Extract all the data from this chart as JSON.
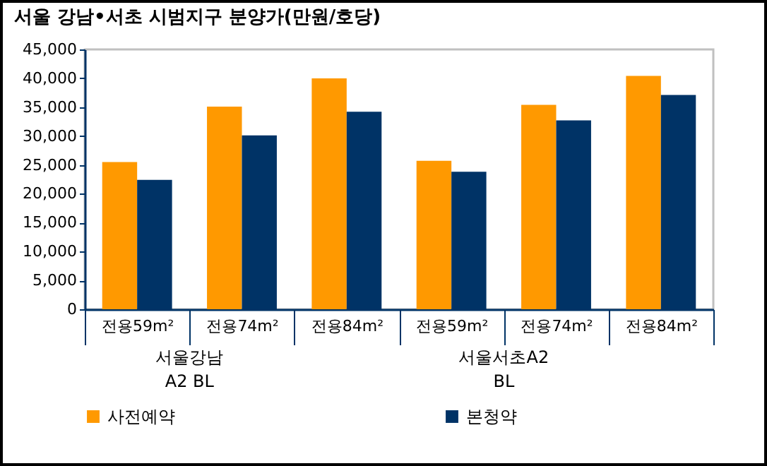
{
  "chart_data": {
    "type": "bar",
    "title": "서울 강남•서초 시범지구 분양가(만원/호당)",
    "categories": [
      "전용59m²",
      "전용74m²",
      "전용84m²",
      "전용59m²",
      "전용74m²",
      "전용84m²"
    ],
    "series": [
      {
        "name": "사전예약",
        "color": "#ff9900",
        "values": [
          25500,
          35100,
          40000,
          25700,
          35400,
          40400
        ]
      },
      {
        "name": "본청약",
        "color": "#003366",
        "values": [
          22400,
          30100,
          34200,
          23800,
          32700,
          37100
        ]
      }
    ],
    "ylim": [
      0,
      45000
    ],
    "yticks": [
      {
        "value": 0,
        "label": "0"
      },
      {
        "value": 5000,
        "label": "5,000"
      },
      {
        "value": 10000,
        "label": "10,000"
      },
      {
        "value": 15000,
        "label": "15,000"
      },
      {
        "value": 20000,
        "label": "20,000"
      },
      {
        "value": 25000,
        "label": "25,000"
      },
      {
        "value": 30000,
        "label": "30,000"
      },
      {
        "value": 35000,
        "label": "35,000"
      },
      {
        "value": 40000,
        "label": "40,000"
      },
      {
        "value": 45000,
        "label": "45,000"
      }
    ],
    "annotations": [
      "서울강남\nA2 BL",
      "서울서초A2\nBL"
    ],
    "grid": false,
    "legend": "bottom"
  }
}
